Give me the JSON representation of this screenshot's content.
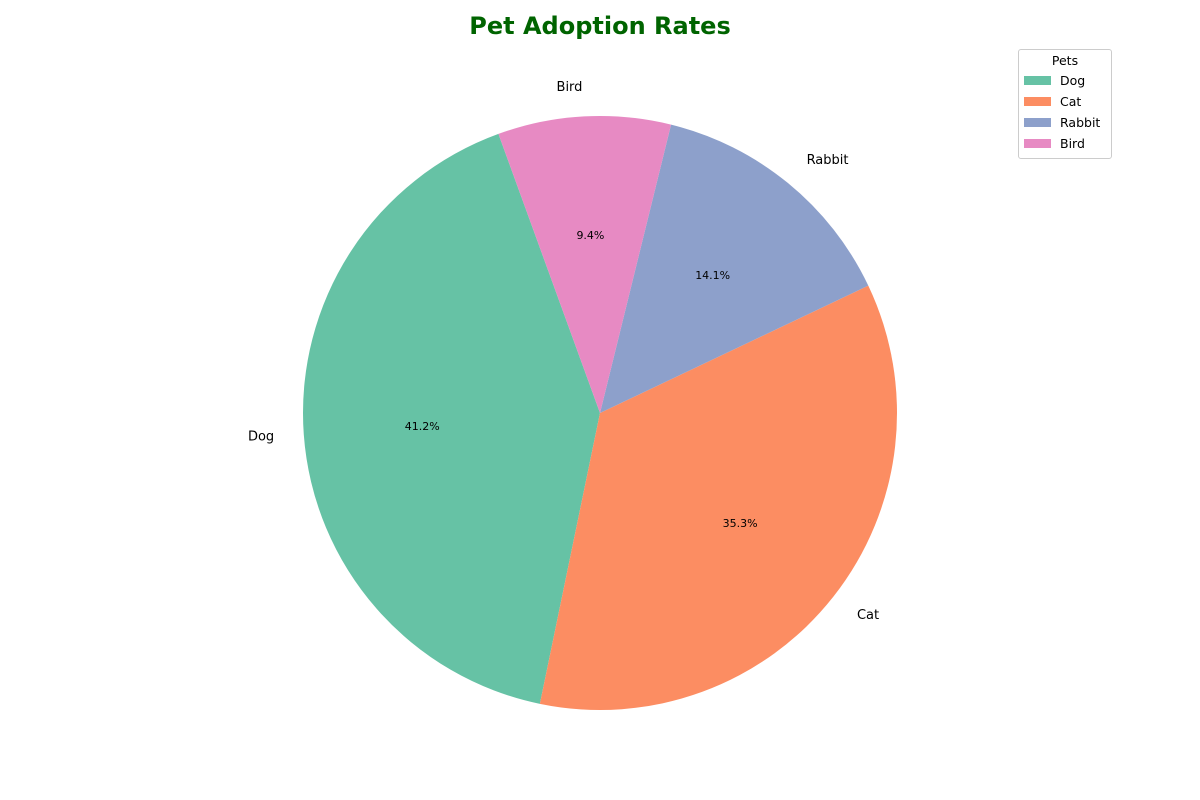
{
  "chart_data": {
    "type": "pie",
    "title": "Pet Adoption Rates",
    "title_color": "#006400",
    "categories": [
      "Dog",
      "Cat",
      "Rabbit",
      "Bird"
    ],
    "values": [
      41.2,
      35.3,
      14.1,
      9.4
    ],
    "percent_labels": [
      "41.2%",
      "35.3%",
      "14.1%",
      "9.4%"
    ],
    "colors": [
      "#66c2a5",
      "#fc8d62",
      "#8da0cb",
      "#e78ac3"
    ],
    "start_angle_deg": 110,
    "direction": "counterclockwise",
    "legend": {
      "title": "Pets",
      "placement": "top-right",
      "entries": [
        "Dog",
        "Cat",
        "Rabbit",
        "Bird"
      ]
    }
  }
}
